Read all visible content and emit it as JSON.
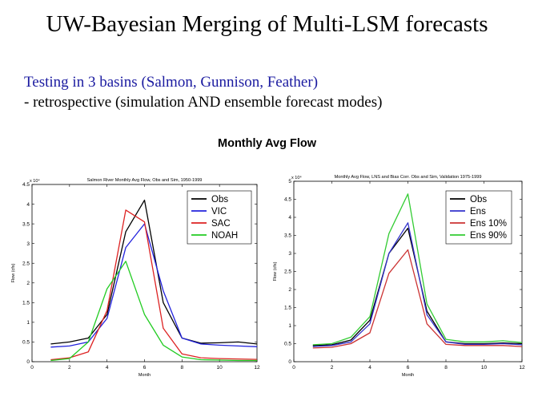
{
  "slide": {
    "title": "UW-Bayesian Merging of Multi-LSM forecasts",
    "line1": "Testing in 3 basins (Salmon, Gunnison, Feather)",
    "line2": "- retrospective (simulation AND ensemble forecast modes)",
    "subtitle": "Monthly Avg Flow"
  },
  "chart_data": [
    {
      "type": "line",
      "title": "Salmon River Monthly Avg Flow, Obs and Sim, 1950-1999",
      "xlabel": "Month",
      "ylabel": "Flow (cfs)",
      "y_multiplier": "x 10⁴",
      "xlim": [
        0,
        12
      ],
      "ylim": [
        0,
        4.5
      ],
      "xticks": [
        0,
        2,
        4,
        6,
        8,
        10,
        12
      ],
      "yticks": [
        0,
        0.5,
        1,
        1.5,
        2,
        2.5,
        3,
        3.5,
        4,
        4.5
      ],
      "grid": false,
      "legend": "top-right",
      "x": [
        1,
        2,
        3,
        4,
        5,
        6,
        7,
        8,
        9,
        10,
        11,
        12
      ],
      "series": [
        {
          "name": "Obs",
          "color": "#000000",
          "values": [
            0.45,
            0.5,
            0.6,
            1.2,
            3.3,
            4.1,
            1.5,
            0.6,
            0.47,
            0.48,
            0.5,
            0.45
          ]
        },
        {
          "name": "VIC",
          "color": "#2222dd",
          "values": [
            0.37,
            0.4,
            0.5,
            1.1,
            2.9,
            3.5,
            1.8,
            0.6,
            0.45,
            0.42,
            0.4,
            0.38
          ]
        },
        {
          "name": "SAC",
          "color": "#dd2222",
          "values": [
            0.05,
            0.1,
            0.25,
            1.3,
            3.85,
            3.55,
            0.85,
            0.2,
            0.1,
            0.08,
            0.07,
            0.06
          ]
        },
        {
          "name": "NOAH",
          "color": "#22cc22",
          "values": [
            0.03,
            0.08,
            0.5,
            1.85,
            2.55,
            1.2,
            0.42,
            0.12,
            0.05,
            0.04,
            0.03,
            0.03
          ]
        }
      ]
    },
    {
      "type": "line",
      "title": "Monthly Avg Flow, LNS and Bias Corr. Obs and Sim, Validation 1975-1999",
      "xlabel": "Month",
      "ylabel": "Flow (cfs)",
      "y_multiplier": "x 10⁴",
      "xlim": [
        0,
        12
      ],
      "ylim": [
        0,
        5
      ],
      "xticks": [
        0,
        2,
        4,
        6,
        8,
        10,
        12
      ],
      "yticks": [
        0,
        0.5,
        1,
        1.5,
        2,
        2.5,
        3,
        3.5,
        4,
        4.5,
        5
      ],
      "grid": false,
      "legend": "top-right",
      "x": [
        1,
        2,
        3,
        4,
        5,
        6,
        7,
        8,
        9,
        10,
        11,
        12
      ],
      "series": [
        {
          "name": "Obs",
          "color": "#000000",
          "values": [
            0.45,
            0.47,
            0.6,
            1.15,
            3.0,
            3.7,
            1.4,
            0.55,
            0.5,
            0.5,
            0.52,
            0.5
          ]
        },
        {
          "name": "Ens",
          "color": "#3333cc",
          "values": [
            0.42,
            0.45,
            0.55,
            1.05,
            3.0,
            3.85,
            1.3,
            0.55,
            0.48,
            0.48,
            0.5,
            0.47
          ]
        },
        {
          "name": "Ens 10%",
          "color": "#cc3333",
          "values": [
            0.38,
            0.4,
            0.5,
            0.8,
            2.45,
            3.1,
            1.05,
            0.48,
            0.45,
            0.45,
            0.45,
            0.42
          ]
        },
        {
          "name": "Ens 90%",
          "color": "#33cc33",
          "values": [
            0.47,
            0.5,
            0.68,
            1.25,
            3.55,
            4.65,
            1.6,
            0.62,
            0.55,
            0.55,
            0.58,
            0.53
          ]
        }
      ]
    }
  ]
}
